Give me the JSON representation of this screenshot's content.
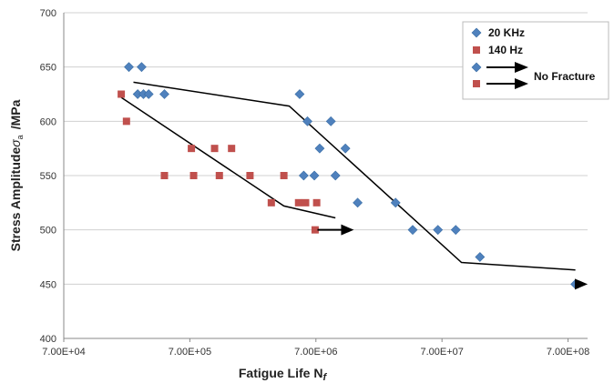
{
  "chart_data": {
    "type": "scatter",
    "xscale": "log",
    "xlabel": "Fatigue Life N",
    "xlabel_sub": "f",
    "ylabel": "Stress Amplitude",
    "ylabel_sigma": "σ",
    "ylabel_sub": "a",
    "ylabel_unit": "/MPa",
    "xlim": [
      70000,
      1000000000
    ],
    "ylim": [
      400,
      700
    ],
    "x_ticks": [
      70000,
      700000,
      7000000,
      70000000,
      700000000
    ],
    "x_tick_labels": [
      "7.00E+04",
      "7.00E+05",
      "7.00E+06",
      "7.00E+07",
      "7.00E+08"
    ],
    "y_ticks": [
      400,
      450,
      500,
      550,
      600,
      650,
      700
    ],
    "grid": "horizontal",
    "legend_position": "top-right",
    "legend_no_fracture": "No Fracture",
    "series": [
      {
        "name": "20 KHz",
        "marker": "diamond",
        "color": "#4f81bd",
        "points": [
          [
            230000,
            650
          ],
          [
            290000,
            650
          ],
          [
            270000,
            625
          ],
          [
            300000,
            625
          ],
          [
            330000,
            625
          ],
          [
            440000,
            625
          ],
          [
            5200000,
            625
          ],
          [
            6000000,
            600
          ],
          [
            9200000,
            600
          ],
          [
            7500000,
            575
          ],
          [
            12000000,
            575
          ],
          [
            5600000,
            550
          ],
          [
            6800000,
            550
          ],
          [
            10000000,
            550
          ],
          [
            15000000,
            525
          ],
          [
            30000000,
            525
          ],
          [
            41000000,
            500
          ],
          [
            65000000,
            500
          ],
          [
            90000000,
            500
          ],
          [
            140000000,
            475
          ],
          [
            800000000,
            450
          ]
        ]
      },
      {
        "name": "140 Hz",
        "marker": "square",
        "color": "#c0504d",
        "points": [
          [
            200000,
            625
          ],
          [
            220000,
            600
          ],
          [
            720000,
            575
          ],
          [
            1100000,
            575
          ],
          [
            1500000,
            575
          ],
          [
            440000,
            550
          ],
          [
            750000,
            550
          ],
          [
            1200000,
            550
          ],
          [
            2100000,
            550
          ],
          [
            3900000,
            550
          ],
          [
            3100000,
            525
          ],
          [
            5100000,
            525
          ],
          [
            5800000,
            525
          ],
          [
            7100000,
            525
          ],
          [
            6900000,
            500
          ]
        ]
      }
    ],
    "trend_lines": [
      {
        "series": "20 KHz",
        "points": [
          [
            250000,
            636
          ],
          [
            4300000,
            614
          ],
          [
            100000000,
            470
          ],
          [
            800000000,
            463
          ]
        ]
      },
      {
        "series": "140 Hz",
        "points": [
          [
            200000,
            622
          ],
          [
            3900000,
            522
          ],
          [
            10000000,
            511
          ]
        ]
      }
    ],
    "runout_arrows": [
      {
        "series": "140 Hz",
        "from": [
          7200000,
          500
        ],
        "to": [
          14000000,
          500
        ]
      },
      {
        "series": "20 KHz",
        "from": [
          870000000,
          450
        ],
        "to": [
          1000000000,
          450
        ]
      }
    ]
  }
}
